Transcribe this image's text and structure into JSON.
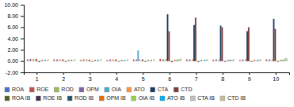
{
  "chart_data": {
    "type": "bar",
    "categories": [
      "1",
      "2",
      "3",
      "4",
      "5",
      "6",
      "7",
      "8",
      "9",
      "10"
    ],
    "series": [
      {
        "name": "ROA",
        "color": "#4472C4",
        "values": [
          0.02,
          0.01,
          0.01,
          0.01,
          0.01,
          0.02,
          0.02,
          0.02,
          0.01,
          0.02
        ]
      },
      {
        "name": "ROE",
        "color": "#C0504D",
        "values": [
          0.3,
          0.3,
          0.2,
          0.2,
          0.3,
          0.4,
          0.3,
          0.25,
          0.2,
          0.3
        ]
      },
      {
        "name": "ROD",
        "color": "#9BBB59",
        "values": [
          0.05,
          0.05,
          0.05,
          0.05,
          0.05,
          0.06,
          0.06,
          0.05,
          0.05,
          0.06
        ]
      },
      {
        "name": "OPM",
        "color": "#8064A2",
        "values": [
          0.4,
          0.3,
          0.3,
          0.3,
          0.3,
          0.3,
          0.3,
          0.3,
          0.3,
          0.3
        ]
      },
      {
        "name": "OIA",
        "color": "#4BACC6",
        "values": [
          0.05,
          0.05,
          0.05,
          0.05,
          1.9,
          0.1,
          0.05,
          0.05,
          0.05,
          0.05
        ]
      },
      {
        "name": "ATO",
        "color": "#F79646",
        "values": [
          0.4,
          0.35,
          0.35,
          0.35,
          0.3,
          0.4,
          0.35,
          0.3,
          0.35,
          0.3
        ]
      },
      {
        "name": "CTA",
        "color": "#17375E",
        "values": [
          0.05,
          0.04,
          -0.05,
          0.04,
          0.04,
          8.3,
          6.4,
          6.3,
          5.3,
          7.5
        ]
      },
      {
        "name": "CTD",
        "color": "#7F3C3C",
        "values": [
          0.4,
          0.3,
          0.25,
          0.3,
          0.3,
          5.3,
          7.7,
          6.0,
          6.0,
          5.7
        ]
      },
      {
        "name": "ROA IB",
        "color": "#4F6228",
        "values": [
          -0.05,
          -0.05,
          -0.05,
          -0.04,
          -0.05,
          -0.05,
          -0.05,
          -0.05,
          -0.05,
          -0.05
        ]
      },
      {
        "name": "ROE IB",
        "color": "#403152",
        "values": [
          -0.2,
          -0.15,
          -0.12,
          -0.12,
          -0.15,
          -0.2,
          -0.18,
          -0.15,
          -0.15,
          -0.15
        ]
      },
      {
        "name": "ROD IB",
        "color": "#215868",
        "values": [
          0.04,
          0.04,
          0.04,
          0.04,
          0.04,
          0.04,
          0.04,
          0.04,
          0.04,
          0.04
        ]
      },
      {
        "name": "OPM IB",
        "color": "#E36C09",
        "values": [
          0.25,
          0.25,
          0.25,
          0.25,
          0.25,
          0.25,
          0.25,
          0.25,
          0.25,
          0.25
        ]
      },
      {
        "name": "OIA IB",
        "color": "#92D050",
        "values": [
          0.04,
          0.04,
          0.04,
          0.04,
          0.04,
          0.25,
          0.04,
          0.25,
          0.04,
          0.25
        ]
      },
      {
        "name": "ATO IB",
        "color": "#00B0F0",
        "values": [
          0.25,
          0.25,
          0.25,
          0.25,
          0.25,
          0.25,
          0.25,
          0.25,
          0.25,
          0.25
        ]
      },
      {
        "name": "CTA IB",
        "color": "#C0C0C0",
        "values": [
          0.08,
          0.04,
          0.04,
          0.04,
          0.04,
          0.35,
          0.25,
          0.25,
          0.25,
          0.6
        ]
      },
      {
        "name": "CTD IB",
        "color": "#C4BD97",
        "values": [
          0.35,
          0.35,
          0.35,
          0.35,
          0.35,
          0.45,
          0.35,
          0.35,
          0.35,
          0.45
        ]
      }
    ],
    "ylim": [
      -2.0,
      10.0
    ],
    "yticks": [
      {
        "value": -2.0,
        "label": "-2.00"
      },
      {
        "value": 0.0,
        "label": "0.00"
      },
      {
        "value": 2.0,
        "label": "2.00"
      },
      {
        "value": 4.0,
        "label": "4.00"
      },
      {
        "value": 6.0,
        "label": "6.00"
      },
      {
        "value": 8.0,
        "label": "8.00"
      },
      {
        "value": 10.0,
        "label": "10.00"
      }
    ],
    "grid": false,
    "legend": "bottom"
  }
}
